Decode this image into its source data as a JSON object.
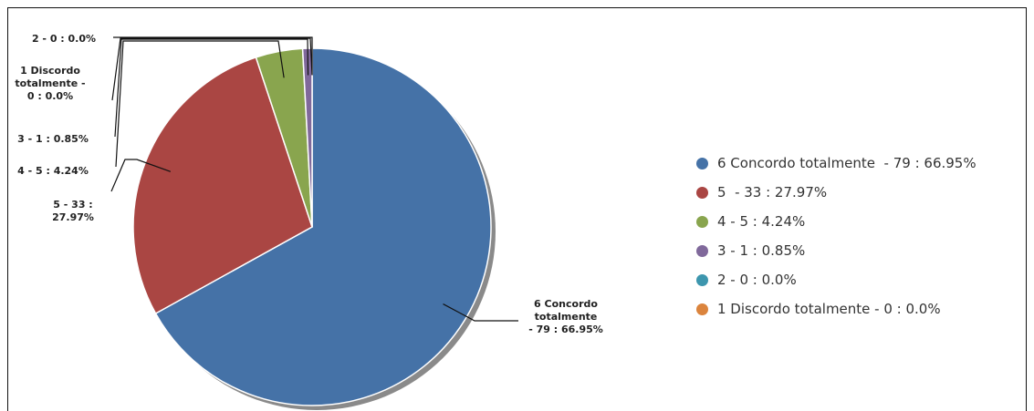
{
  "chart_data": {
    "type": "pie",
    "title": "",
    "slices": [
      {
        "label": "6 Concordo totalmente  - 79 : 66.95%",
        "chart_label": "6 Concordo totalmente - 79 : 66.95%",
        "value": 79,
        "percent": 66.95,
        "color": "#4572a7"
      },
      {
        "label": "5  - 33 : 27.97%",
        "chart_label": "5  - 33 : 27.97%",
        "value": 33,
        "percent": 27.97,
        "color": "#aa4643"
      },
      {
        "label": "4 - 5 : 4.24%",
        "chart_label": "4 - 5 : 4.24%",
        "value": 5,
        "percent": 4.24,
        "color": "#89a54e"
      },
      {
        "label": "3 - 1 : 0.85%",
        "chart_label": "3 - 1 : 0.85%",
        "value": 1,
        "percent": 0.85,
        "color": "#80699b"
      },
      {
        "label": "2 - 0 : 0.0%",
        "chart_label": "2 - 0 : 0.0%",
        "value": 0,
        "percent": 0.0,
        "color": "#3d96ae"
      },
      {
        "label": "1 Discordo totalmente - 0 : 0.0%",
        "chart_label": "1 Discordo totalmente - 0 : 0.0%",
        "value": 0,
        "percent": 0.0,
        "color": "#db843d"
      }
    ],
    "legend_position": "right"
  }
}
